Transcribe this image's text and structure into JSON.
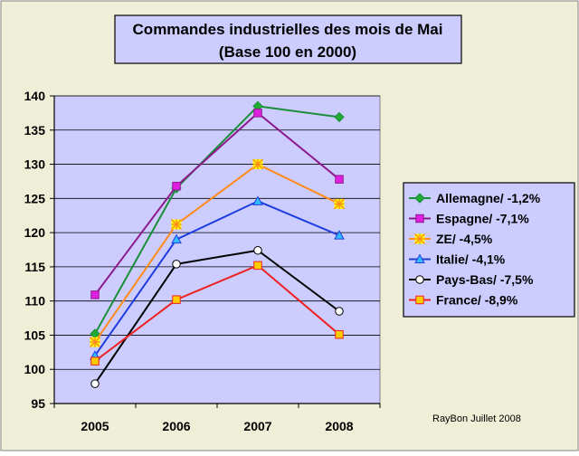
{
  "chart_data": {
    "type": "line",
    "title": "Commandes industrielles des mois de Mai",
    "subtitle": "(Base 100 en 2000)",
    "categories": [
      "2005",
      "2006",
      "2007",
      "2008"
    ],
    "ylim": [
      95,
      140
    ],
    "yticks": [
      95,
      100,
      105,
      110,
      115,
      120,
      125,
      130,
      135,
      140
    ],
    "grid": true,
    "legend_position": "right",
    "credit": "RayBon Juillet 2008",
    "colors": {
      "background": "#efefd7",
      "plot_area": "#ccccff",
      "title_box": "#ccccff",
      "legend_box": "#ccccff"
    },
    "series": [
      {
        "name": "Allemagne/ -1,2%",
        "values": [
          105.2,
          126.5,
          138.5,
          136.9
        ],
        "color": "#1b8e3a",
        "marker": "diamond",
        "marker_fill": "#22aa33"
      },
      {
        "name": "Espagne/ -7,1%",
        "values": [
          110.9,
          126.8,
          137.5,
          127.8
        ],
        "color": "#8e1b8e",
        "marker": "square",
        "marker_fill": "#e020e0"
      },
      {
        "name": "ZE/ -4,5%",
        "values": [
          104.0,
          121.2,
          130.0,
          124.2
        ],
        "color": "#ff8c1a",
        "marker": "asterisk",
        "marker_fill": "#ffff00"
      },
      {
        "name": "Italie/ -4,1%",
        "values": [
          102.0,
          119.0,
          124.6,
          119.6
        ],
        "color": "#1f3ee0",
        "marker": "triangle",
        "marker_fill": "#33bbff"
      },
      {
        "name": "Pays-Bas/ -7,5%",
        "values": [
          97.9,
          115.4,
          117.4,
          108.5
        ],
        "color": "#000000",
        "marker": "circle",
        "marker_fill": "#ffffff"
      },
      {
        "name": "France/ -8,9%",
        "values": [
          101.2,
          110.2,
          115.2,
          105.1
        ],
        "color": "#ee2222",
        "marker": "square",
        "marker_fill": "#ffcc00"
      }
    ]
  }
}
